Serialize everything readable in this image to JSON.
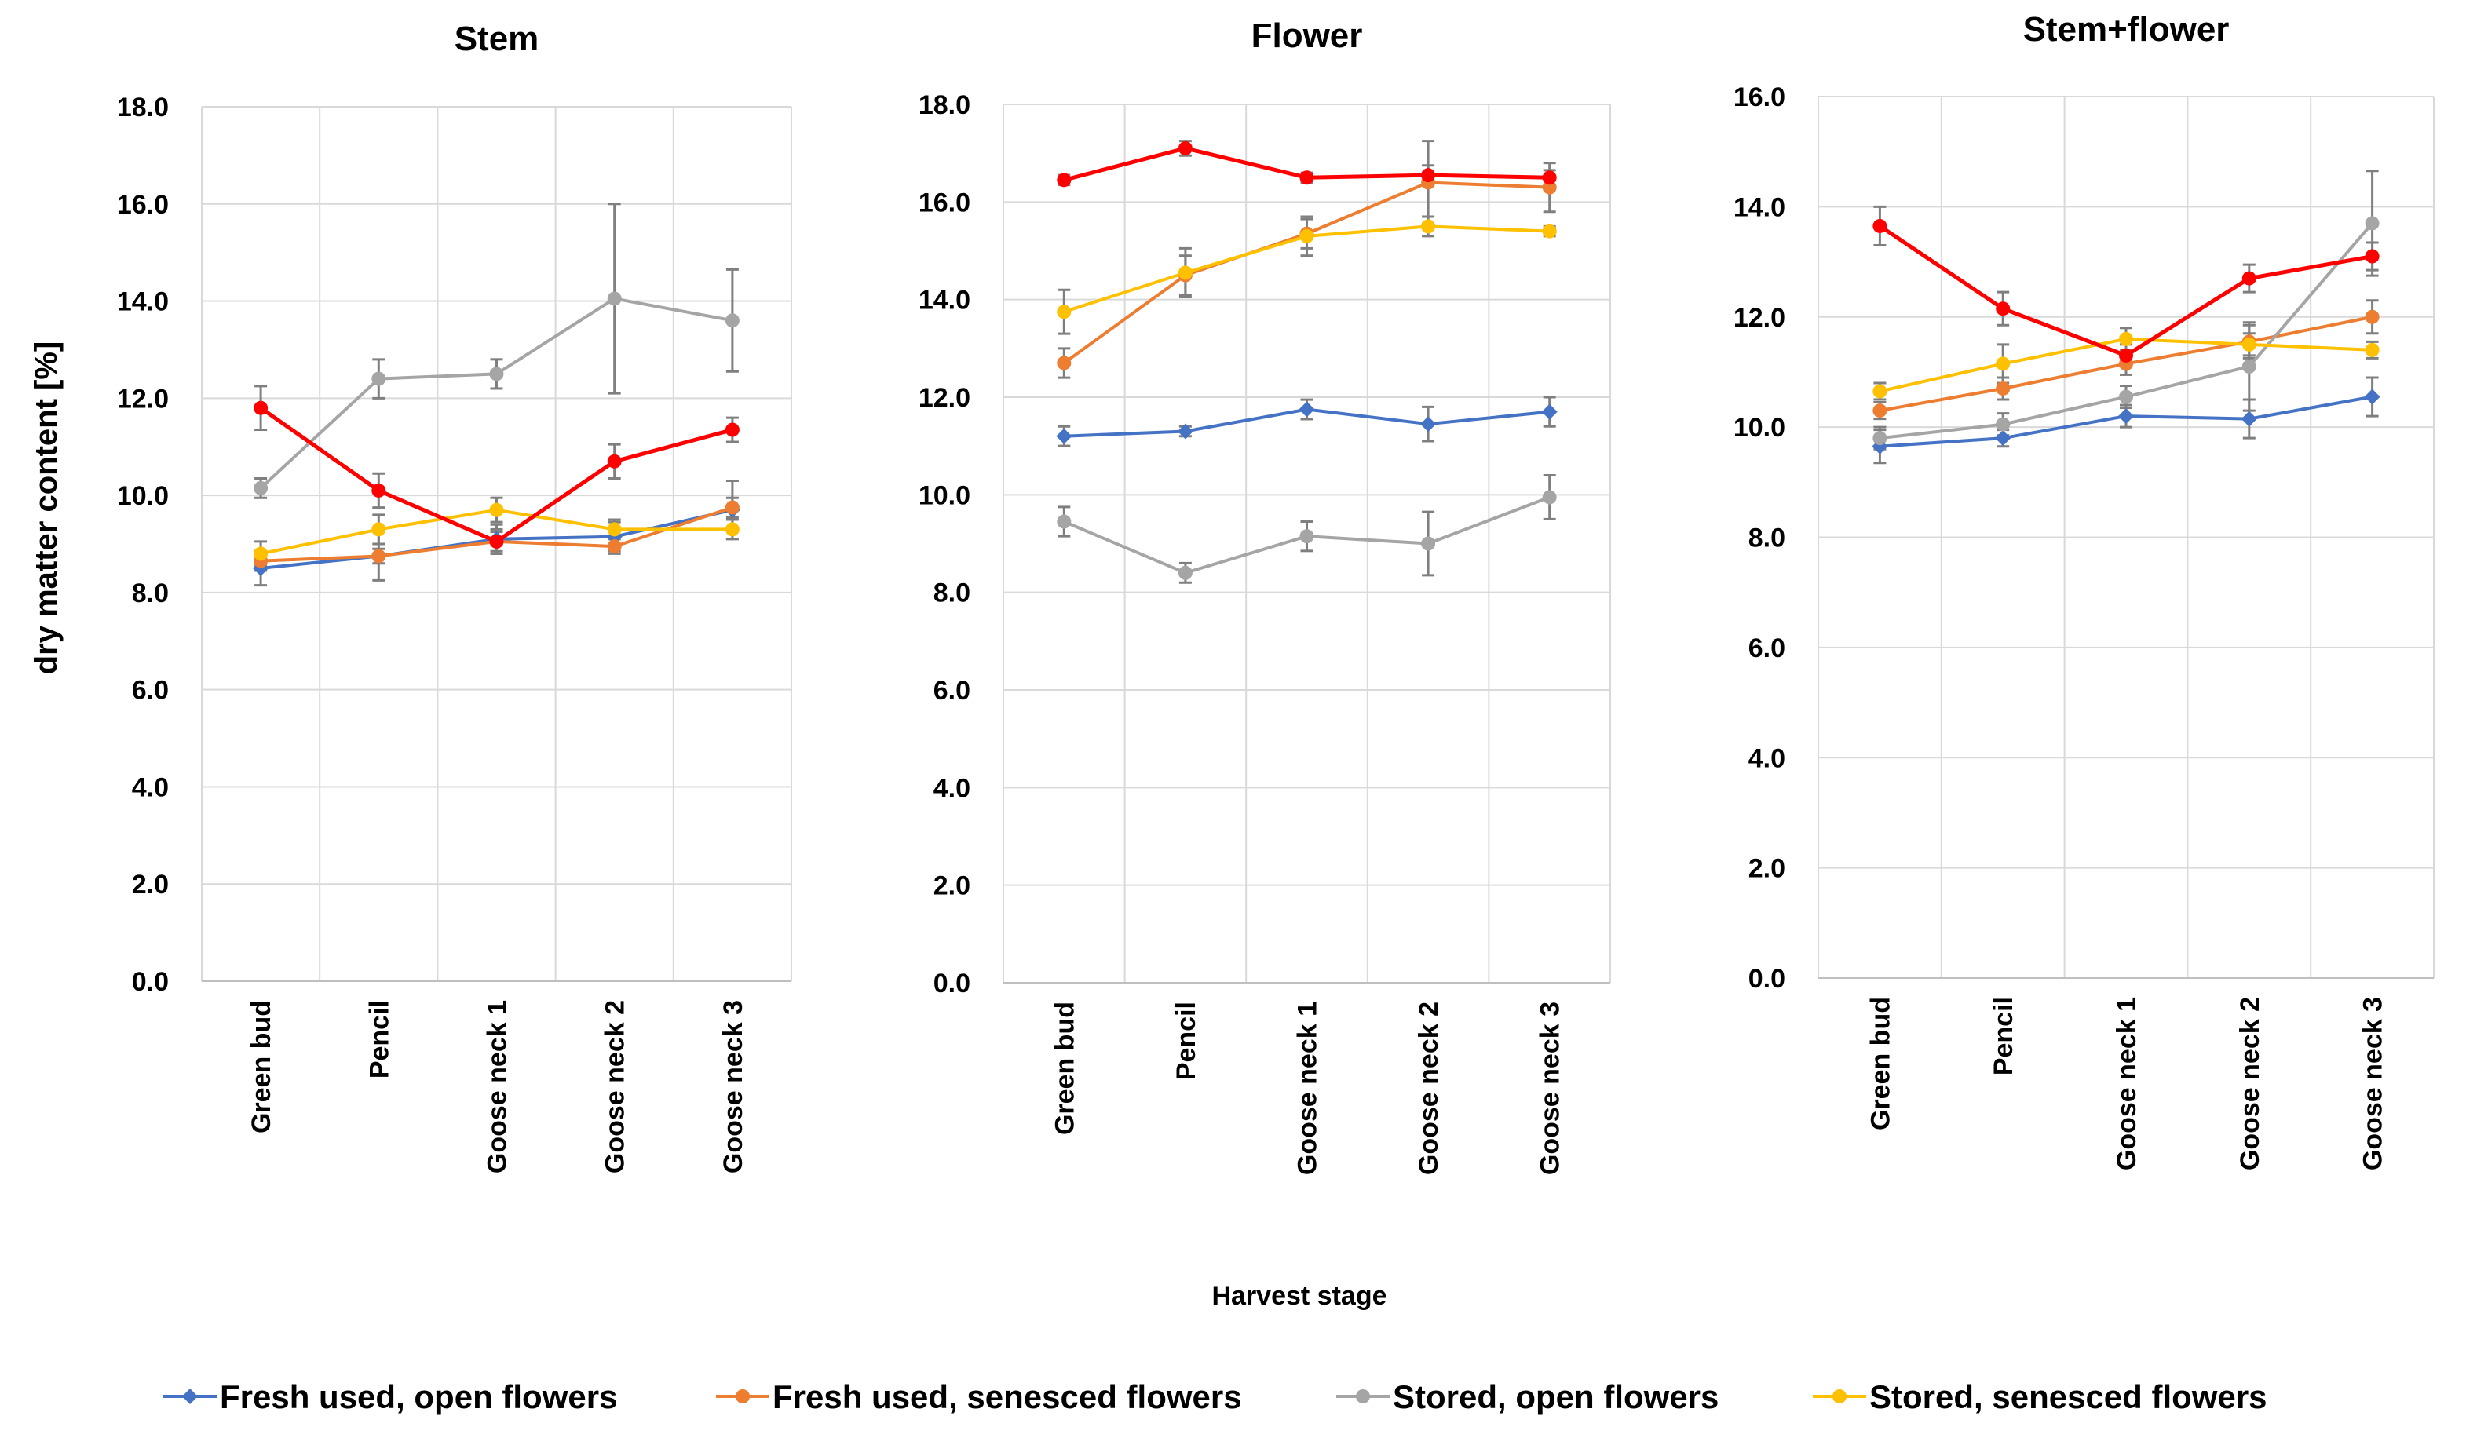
{
  "chart_data": {
    "type": "line",
    "ylabel": "dry matter content [%]",
    "xlabel": "Harvest stage",
    "legend_position": "bottom",
    "categories": [
      "Green bud",
      "Pencil",
      "Goose neck 1",
      "Goose neck 2",
      "Goose neck 3"
    ],
    "series_meta": [
      {
        "name": "Fresh used, open flowers",
        "color": "#4472C4",
        "marker": "diamond"
      },
      {
        "name": "Fresh used, senesced flowers",
        "color": "#ED7D31",
        "marker": "circle"
      },
      {
        "name": "Stored, open flowers",
        "color": "#A5A5A5",
        "marker": "circle"
      },
      {
        "name": "Stored, senesced flowers",
        "color": "#FFC000",
        "marker": "circle"
      },
      {
        "name": "",
        "color": "#FF0000",
        "marker": "circle"
      }
    ],
    "panels": [
      {
        "title": "Stem",
        "ylim": [
          0,
          18
        ],
        "yticks": [
          "0.0",
          "2.0",
          "4.0",
          "6.0",
          "8.0",
          "10.0",
          "12.0",
          "14.0",
          "16.0",
          "18.0"
        ],
        "series": [
          {
            "values": [
              8.5,
              8.75,
              9.1,
              9.15,
              9.7
            ],
            "err": [
              0.35,
              0.5,
              0.3,
              0.3,
              0.6
            ]
          },
          {
            "values": [
              8.65,
              8.75,
              9.05,
              8.95,
              9.75
            ],
            "err": [
              0.2,
              0.15,
              0.25,
              0.15,
              0.2
            ]
          },
          {
            "values": [
              10.15,
              12.4,
              12.5,
              14.05,
              13.6
            ],
            "err": [
              0.2,
              0.4,
              0.3,
              1.95,
              1.05
            ]
          },
          {
            "values": [
              8.8,
              9.3,
              9.7,
              9.3,
              9.3
            ],
            "err": [
              0.25,
              0.3,
              0.25,
              0.2,
              0.2
            ]
          },
          {
            "values": [
              11.8,
              10.1,
              9.05,
              10.7,
              11.35
            ],
            "err": [
              0.45,
              0.35,
              0.2,
              0.35,
              0.25
            ]
          }
        ]
      },
      {
        "title": "Flower",
        "ylim": [
          0,
          18
        ],
        "yticks": [
          "0.0",
          "2.0",
          "4.0",
          "6.0",
          "8.0",
          "10.0",
          "12.0",
          "14.0",
          "16.0",
          "18.0"
        ],
        "series": [
          {
            "values": [
              11.2,
              11.3,
              11.75,
              11.45,
              11.7
            ],
            "err": [
              0.2,
              0.1,
              0.2,
              0.35,
              0.3
            ]
          },
          {
            "values": [
              12.7,
              14.5,
              15.35,
              16.4,
              16.3
            ],
            "err": [
              0.3,
              0.4,
              0.3,
              0.85,
              0.5
            ]
          },
          {
            "values": [
              9.45,
              8.4,
              9.15,
              9.0,
              9.95
            ],
            "err": [
              0.3,
              0.2,
              0.3,
              0.65,
              0.45
            ]
          },
          {
            "values": [
              13.75,
              14.55,
              15.3,
              15.5,
              15.4
            ],
            "err": [
              0.45,
              0.5,
              0.4,
              0.2,
              0.1
            ]
          },
          {
            "values": [
              16.45,
              17.1,
              16.5,
              16.55,
              16.5
            ],
            "err": [
              0.1,
              0.15,
              0.1,
              0.2,
              0.15
            ]
          }
        ]
      },
      {
        "title": "Stem+flower",
        "ylim": [
          0,
          16
        ],
        "yticks": [
          "0.0",
          "2.0",
          "4.0",
          "6.0",
          "8.0",
          "10.0",
          "12.0",
          "14.0",
          "16.0"
        ],
        "series": [
          {
            "values": [
              9.65,
              9.8,
              10.2,
              10.15,
              10.55
            ],
            "err": [
              0.3,
              0.15,
              0.2,
              0.35,
              0.35
            ]
          },
          {
            "values": [
              10.3,
              10.7,
              11.15,
              11.55,
              12.0
            ],
            "err": [
              0.15,
              0.2,
              0.2,
              0.3,
              0.3
            ]
          },
          {
            "values": [
              9.8,
              10.05,
              10.55,
              11.1,
              13.7
            ],
            "err": [
              0.2,
              0.2,
              0.2,
              0.8,
              0.95
            ]
          },
          {
            "values": [
              10.65,
              11.15,
              11.6,
              11.5,
              11.4
            ],
            "err": [
              0.15,
              0.35,
              0.2,
              0.2,
              0.15
            ]
          },
          {
            "values": [
              13.65,
              12.15,
              11.3,
              12.7,
              13.1
            ],
            "err": [
              0.35,
              0.3,
              0.2,
              0.25,
              0.25
            ]
          }
        ]
      }
    ]
  }
}
